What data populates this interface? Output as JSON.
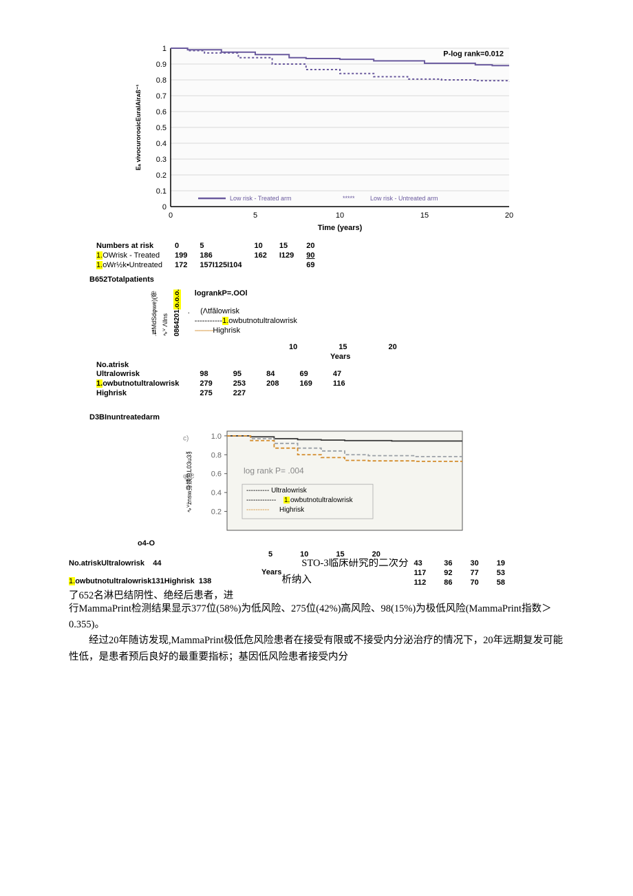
{
  "chart1": {
    "type": "line",
    "title_annot": "P-log rank=0.012",
    "xlabel": "Time (years)",
    "ylabel_garbled": "Eₐ vivoᴄuroroɢicEuralAirᴀß⁻¹",
    "xlim": [
      0,
      20
    ],
    "ylim": [
      0,
      1
    ],
    "xticks": [
      0,
      5,
      10,
      15,
      20
    ],
    "yticks": [
      0,
      0.1,
      0.2,
      0.3,
      0.4,
      0.5,
      0.6,
      0.7,
      0.8,
      0.9,
      1
    ],
    "legend": {
      "a": "Low risk - Treated arm",
      "b": "Low risk - Untreated arm"
    },
    "series_treated": [
      [
        0,
        1.0
      ],
      [
        1,
        0.99
      ],
      [
        3,
        0.975
      ],
      [
        5,
        0.96
      ],
      [
        7,
        0.94
      ],
      [
        8,
        0.935
      ],
      [
        10,
        0.93
      ],
      [
        12,
        0.92
      ],
      [
        15,
        0.905
      ],
      [
        18,
        0.895
      ],
      [
        19,
        0.89
      ],
      [
        20,
        0.89
      ]
    ],
    "series_untreated": [
      [
        0,
        1.0
      ],
      [
        1,
        0.985
      ],
      [
        2,
        0.97
      ],
      [
        4,
        0.94
      ],
      [
        6,
        0.9
      ],
      [
        8,
        0.865
      ],
      [
        10,
        0.84
      ],
      [
        12,
        0.82
      ],
      [
        14,
        0.805
      ],
      [
        16,
        0.8
      ],
      [
        18,
        0.795
      ],
      [
        20,
        0.79
      ]
    ],
    "line_color": "#6a5a9e",
    "grid_color": "#d9d9d9",
    "bg": "#fbfbfb"
  },
  "risk1": {
    "header": [
      "Numbers at risk",
      "0",
      "5",
      "10",
      "15",
      "20"
    ],
    "row_a_label_pre": "1.",
    "row_a_label_post": "OWrisk - Treated",
    "row_a": [
      "199",
      "186",
      "162",
      "I129",
      "90"
    ],
    "row_b_label_pre": "1.",
    "row_b_label_post": "oWr½k•Untreated",
    "row_b": [
      "172",
      "157I125I104",
      "",
      "",
      "69"
    ]
  },
  "panelB": {
    "title": "B652Totalpatients",
    "vert_garbled1": "0864201",
    "vert_garbled1_suffix": ".o.o.o.",
    "vert_garbled2": ".⇄MdSdφwe)(帝",
    "vert_garbled3": "∿ⱽ Λllns",
    "logrank": "logrankP=.OOl",
    "legend_u": "(Λtfălowrisk",
    "legend_l_pre": "-----------",
    "legend_l_hl": "1.",
    "legend_l_post": "owbutnotultralowrisk",
    "legend_h_pre": "----------",
    "legend_h": "Highrisk"
  },
  "yrs2": {
    "y10": "10",
    "y15": "15",
    "y20": "20",
    "label": "Years"
  },
  "risk2": {
    "header": "No.atrisk",
    "rows": [
      {
        "label": "Ultralowrisk",
        "v": [
          "98",
          "95",
          "84",
          "69",
          "47"
        ]
      },
      {
        "label_pre": "1.",
        "label_post": "owbutnotultralowrisk",
        "v": [
          "279",
          "253",
          "208",
          "169",
          "116"
        ],
        "hl": true
      },
      {
        "label": "Highrisk",
        "v": [
          "275",
          "227",
          "",
          "",
          ""
        ]
      }
    ]
  },
  "panelD": {
    "title": "D3BInuntreatedarm"
  },
  "chart3": {
    "type": "line",
    "logrank": "log rank P= .004",
    "ylabel_garbled": "∿ⱽżnsw身姨急L03u3犭",
    "decor_left": "c)",
    "decor_left2": "φ(Ƨ",
    "xticks": [
      5,
      10,
      15,
      20
    ],
    "yticks": [
      0.2,
      0.4,
      0.6,
      0.8,
      1.0
    ],
    "xlim": [
      0,
      20
    ],
    "ylim": [
      0,
      1.05
    ],
    "legend": {
      "u": "Ultralowrisk",
      "l_pre": "-------------",
      "l_hl": "1.",
      "l_post": "owbutnotultralowrisk",
      "h_pre": "----------",
      "h": "Highrisk"
    },
    "colors": {
      "u": "#333333",
      "l": "#9aa0a6",
      "h": "#d38b2a",
      "axis": "#555",
      "inner_bg": "#f5f5f0"
    },
    "series_u": [
      [
        0,
        1.0
      ],
      [
        2,
        0.99
      ],
      [
        4,
        0.97
      ],
      [
        6,
        0.96
      ],
      [
        8,
        0.955
      ],
      [
        10,
        0.95
      ],
      [
        14,
        0.945
      ],
      [
        20,
        0.945
      ]
    ],
    "series_l": [
      [
        0,
        1.0
      ],
      [
        2,
        0.97
      ],
      [
        4,
        0.92
      ],
      [
        6,
        0.87
      ],
      [
        8,
        0.84
      ],
      [
        10,
        0.8
      ],
      [
        12,
        0.79
      ],
      [
        16,
        0.78
      ],
      [
        20,
        0.78
      ]
    ],
    "series_h": [
      [
        0,
        1.0
      ],
      [
        2,
        0.95
      ],
      [
        4,
        0.87
      ],
      [
        6,
        0.8
      ],
      [
        8,
        0.77
      ],
      [
        10,
        0.74
      ],
      [
        12,
        0.735
      ],
      [
        16,
        0.73
      ],
      [
        20,
        0.73
      ]
    ]
  },
  "o4o": "o4-O",
  "risk4": {
    "head": [
      "5",
      "10",
      "15",
      "20"
    ],
    "head_lbl": "Years",
    "left_rows": [
      {
        "t": "No.atriskUltralowrisk",
        "v": "44"
      },
      {
        "t_pre": "1.",
        "t_post": "owbutnotultralowrisk131Highrisk",
        "v": "138",
        "hl": true
      }
    ],
    "data": [
      [
        "43",
        "36",
        "30",
        "19"
      ],
      [
        "117",
        "92",
        "77",
        "53"
      ],
      [
        "112",
        "86",
        "70",
        "58"
      ]
    ]
  },
  "prose": {
    "p1a": "STO-3临床研究的二次分析纳入",
    "p1b": "了652名淋巴结阴性、绝经后患者，进",
    "p2": "行MammaPrint检测结果显示377位(58%)为低风险、275位(42%)高风险、98(15%)为极低风险(MammaPrint指数＞0.355)。",
    "p3": "经过20年随访发现,MammaPrint极低危风险患者在接受有限或不接受内分泌治疗的情况下，20年远期复发可能性低，是患者预后良好的最重要指标；基因低风险患者接受内分"
  }
}
